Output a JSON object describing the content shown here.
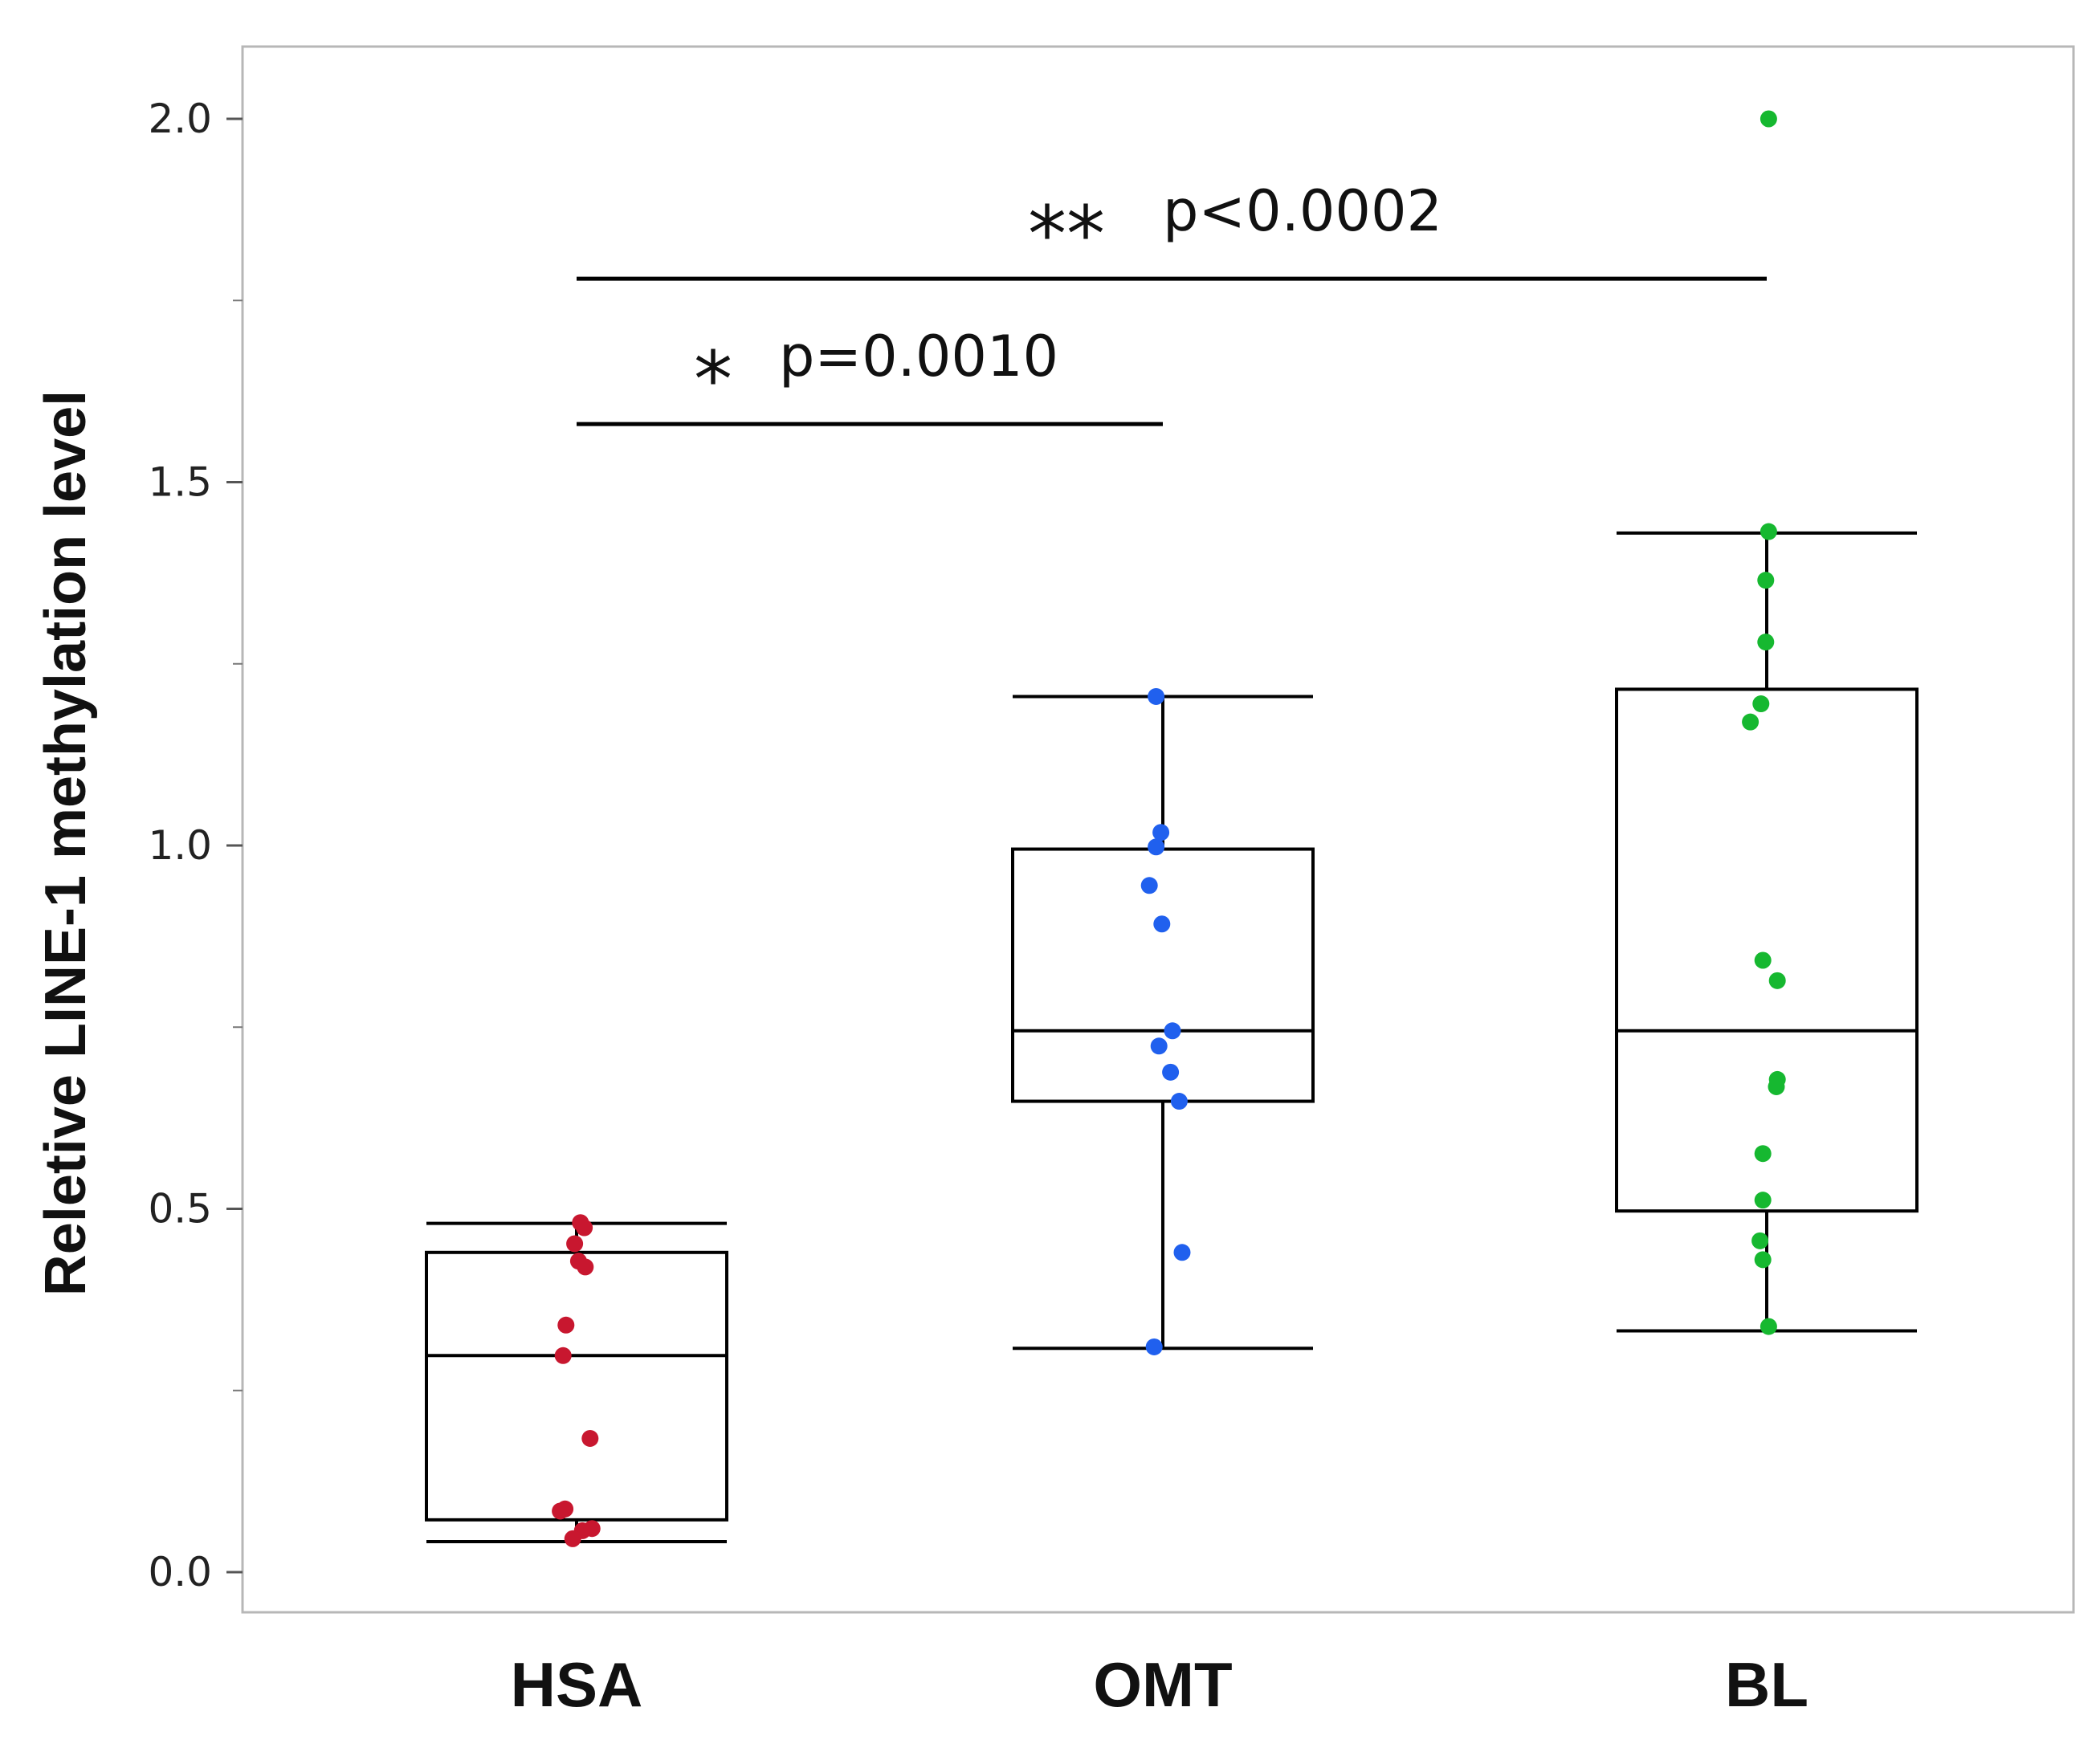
{
  "colors": {
    "HSA": "#c8172f",
    "OMT": "#2060ee",
    "BL": "#16b830",
    "frame": "#b7b7b7",
    "line": "#000000"
  },
  "chart_data": {
    "type": "box",
    "title": "",
    "xlabel": "",
    "ylabel": "Reletive LINE-1 methylation level",
    "ylim": [
      -0.055,
      2.1
    ],
    "yticks": [
      0.0,
      0.5,
      1.0,
      1.5,
      2.0
    ],
    "ytick_labels": [
      "0.0",
      "0.5",
      "1.0",
      "1.5",
      "2.0"
    ],
    "yminor": [
      0.25,
      0.75,
      1.25,
      1.75
    ],
    "categories": [
      "HSA",
      "OMT",
      "BL"
    ],
    "series": [
      {
        "name": "HSA",
        "box": {
          "whisker_low": 0.042,
          "q1": 0.072,
          "median": 0.298,
          "q3": 0.44,
          "whisker_high": 0.48
        },
        "points": [
          {
            "x": 0.02,
            "y": 0.481
          },
          {
            "x": 0.04,
            "y": 0.474
          },
          {
            "x": -0.01,
            "y": 0.452
          },
          {
            "x": 0.01,
            "y": 0.428
          },
          {
            "x": 0.045,
            "y": 0.42
          },
          {
            "x": -0.055,
            "y": 0.34
          },
          {
            "x": -0.07,
            "y": 0.298
          },
          {
            "x": 0.07,
            "y": 0.184
          },
          {
            "x": -0.06,
            "y": 0.087
          },
          {
            "x": -0.085,
            "y": 0.084
          },
          {
            "x": 0.03,
            "y": 0.057
          },
          {
            "x": 0.08,
            "y": 0.06
          },
          {
            "x": -0.02,
            "y": 0.046
          }
        ]
      },
      {
        "name": "OMT",
        "box": {
          "whisker_low": 0.308,
          "q1": 0.648,
          "median": 0.745,
          "q3": 0.995,
          "whisker_high": 1.205
        },
        "points": [
          {
            "x": -0.035,
            "y": 1.205
          },
          {
            "x": -0.01,
            "y": 1.018
          },
          {
            "x": -0.035,
            "y": 0.998
          },
          {
            "x": -0.07,
            "y": 0.945
          },
          {
            "x": -0.005,
            "y": 0.892
          },
          {
            "x": 0.05,
            "y": 0.745
          },
          {
            "x": -0.02,
            "y": 0.724
          },
          {
            "x": 0.04,
            "y": 0.688
          },
          {
            "x": 0.085,
            "y": 0.648
          },
          {
            "x": 0.1,
            "y": 0.44
          },
          {
            "x": -0.045,
            "y": 0.31
          }
        ]
      },
      {
        "name": "BL",
        "box": {
          "whisker_low": 0.332,
          "q1": 0.497,
          "median": 0.745,
          "q3": 1.215,
          "whisker_high": 1.43
        },
        "points": [
          {
            "x": 0.01,
            "y": 2.0
          },
          {
            "x": 0.01,
            "y": 1.432
          },
          {
            "x": -0.005,
            "y": 1.365
          },
          {
            "x": -0.005,
            "y": 1.28
          },
          {
            "x": -0.03,
            "y": 1.195
          },
          {
            "x": -0.085,
            "y": 1.17
          },
          {
            "x": -0.02,
            "y": 0.842
          },
          {
            "x": 0.055,
            "y": 0.814
          },
          {
            "x": 0.055,
            "y": 0.678
          },
          {
            "x": 0.05,
            "y": 0.668
          },
          {
            "x": -0.02,
            "y": 0.576
          },
          {
            "x": -0.02,
            "y": 0.512
          },
          {
            "x": -0.035,
            "y": 0.456
          },
          {
            "x": -0.02,
            "y": 0.43
          },
          {
            "x": 0.01,
            "y": 0.338
          }
        ]
      }
    ],
    "annotations": [
      {
        "from": "HSA",
        "to": "OMT",
        "stars": "*",
        "text": "p=0.0010",
        "y": 1.58
      },
      {
        "from": "HSA",
        "to": "BL",
        "stars": "**",
        "text": "p<0.0002",
        "y": 1.78
      }
    ]
  }
}
